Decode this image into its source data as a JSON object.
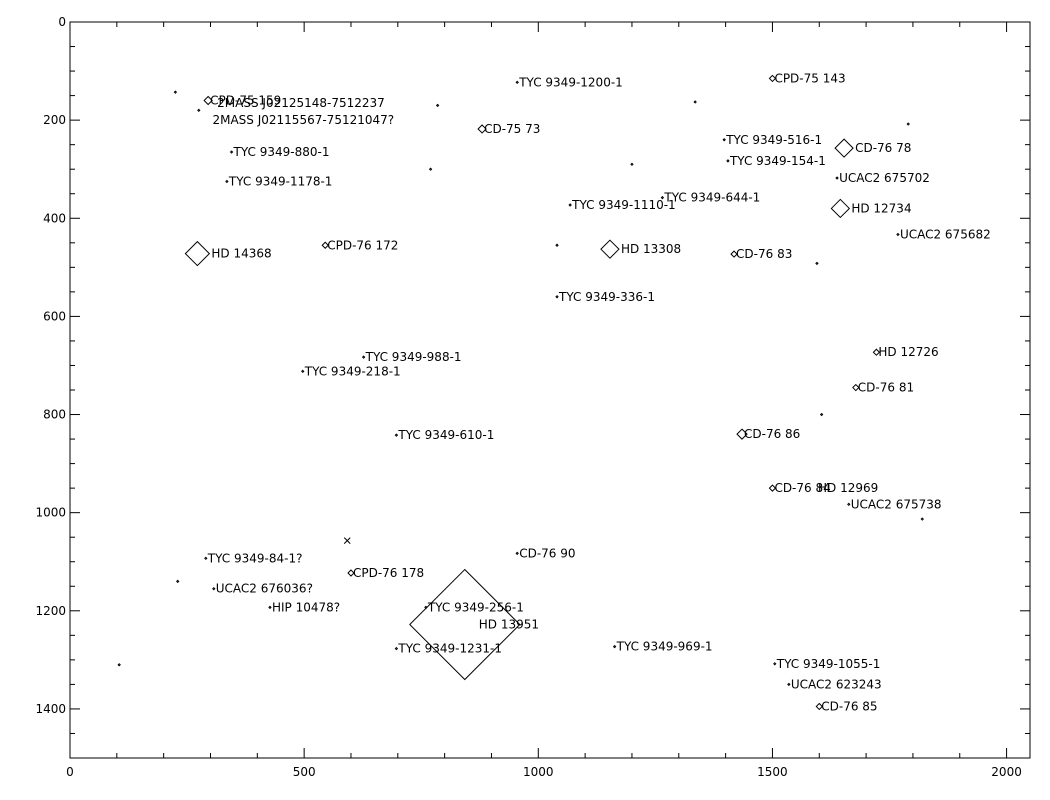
{
  "chart_data": {
    "type": "scatter",
    "title": "",
    "xlabel": "",
    "ylabel": "",
    "xlim": [
      0,
      2050
    ],
    "ylim": [
      1500,
      0
    ],
    "x_ticks": [
      0,
      500,
      1000,
      1500,
      2000
    ],
    "y_ticks": [
      0,
      200,
      400,
      600,
      800,
      1000,
      1200,
      1400
    ],
    "grid": false,
    "legend": "none",
    "stars": [
      {
        "name": "CPD-75 159",
        "x": 295,
        "y": 160,
        "size": 4
      },
      {
        "name": "2MASS J02125148-7512237",
        "x": 310,
        "y": 165,
        "size": 0
      },
      {
        "name": "2MASS J02115567-75121047?",
        "x": 300,
        "y": 200,
        "size": 0
      },
      {
        "name": "TYC 9349-880-1",
        "x": 345,
        "y": 265,
        "size": 1
      },
      {
        "name": "TYC 9349-1178-1",
        "x": 335,
        "y": 325,
        "size": 1
      },
      {
        "name": "HD 14368",
        "x": 272,
        "y": 472,
        "size": 12
      },
      {
        "name": "CPD-76 172",
        "x": 545,
        "y": 455,
        "size": 3
      },
      {
        "name": "TYC 9349-1200-1",
        "x": 955,
        "y": 123,
        "size": 1
      },
      {
        "name": "CD-75 73",
        "x": 880,
        "y": 218,
        "size": 4
      },
      {
        "name": "TYC 9349-988-1",
        "x": 627,
        "y": 683,
        "size": 1
      },
      {
        "name": "TYC 9349-218-1",
        "x": 497,
        "y": 712,
        "size": 1
      },
      {
        "name": "TYC 9349-610-1",
        "x": 697,
        "y": 842,
        "size": 1
      },
      {
        "name": "TYC 9349-1110-1",
        "x": 1068,
        "y": 373,
        "size": 1
      },
      {
        "name": "HD 13308",
        "x": 1153,
        "y": 463,
        "size": 9
      },
      {
        "name": "TYC 9349-336-1",
        "x": 1040,
        "y": 560,
        "size": 1
      },
      {
        "name": "TYC 9349-644-1",
        "x": 1265,
        "y": 358,
        "size": 1
      },
      {
        "name": "CPD-75 143",
        "x": 1500,
        "y": 115,
        "size": 3
      },
      {
        "name": "TYC 9349-516-1",
        "x": 1397,
        "y": 240,
        "size": 1
      },
      {
        "name": "TYC 9349-154-1",
        "x": 1405,
        "y": 283,
        "size": 1
      },
      {
        "name": "CD-76 78",
        "x": 1653,
        "y": 257,
        "size": 9
      },
      {
        "name": "UCAC2 675702",
        "x": 1638,
        "y": 318,
        "size": 1
      },
      {
        "name": "HD 12734",
        "x": 1645,
        "y": 380,
        "size": 9
      },
      {
        "name": "UCAC2 675682",
        "x": 1768,
        "y": 433,
        "size": 1
      },
      {
        "name": "CD-76 83",
        "x": 1418,
        "y": 473,
        "size": 3
      },
      {
        "name": "HD 12726",
        "x": 1722,
        "y": 673,
        "size": 3
      },
      {
        "name": "CD-76 81",
        "x": 1678,
        "y": 745,
        "size": 3
      },
      {
        "name": "CD-76 86",
        "x": 1435,
        "y": 840,
        "size": 5
      },
      {
        "name": "CD-76 84",
        "x": 1500,
        "y": 950,
        "size": 3
      },
      {
        "name": "HD 12969",
        "x": 1593,
        "y": 950,
        "size": 0
      },
      {
        "name": "UCAC2 675738",
        "x": 1663,
        "y": 983,
        "size": 1
      },
      {
        "name": "TYC 9349-84-1?",
        "x": 290,
        "y": 1093,
        "size": 1
      },
      {
        "name": "CPD-76 178",
        "x": 600,
        "y": 1123,
        "size": 3
      },
      {
        "name": "UCAC2 676036?",
        "x": 307,
        "y": 1155,
        "size": 1
      },
      {
        "name": "HIP 10478?",
        "x": 427,
        "y": 1193,
        "size": 1
      },
      {
        "name": "CD-76 90",
        "x": 955,
        "y": 1083,
        "size": 1
      },
      {
        "name": "TYC 9349-256-1",
        "x": 760,
        "y": 1193,
        "size": 1
      },
      {
        "name": "HD 13951",
        "x": 843,
        "y": 1228,
        "size": 55
      },
      {
        "name": "TYC 9349-1231-1",
        "x": 697,
        "y": 1277,
        "size": 1
      },
      {
        "name": "TYC 9349-969-1",
        "x": 1163,
        "y": 1273,
        "size": 1
      },
      {
        "name": "TYC 9349-1055-1",
        "x": 1505,
        "y": 1308,
        "size": 1
      },
      {
        "name": "UCAC2 623243",
        "x": 1535,
        "y": 1350,
        "size": 1
      },
      {
        "name": "CD-76 85",
        "x": 1600,
        "y": 1395,
        "size": 3
      }
    ],
    "unlabeled": [
      {
        "x": 225,
        "y": 143,
        "size": 1
      },
      {
        "x": 275,
        "y": 180,
        "size": 1
      },
      {
        "x": 785,
        "y": 170,
        "size": 1
      },
      {
        "x": 770,
        "y": 300,
        "size": 1
      },
      {
        "x": 1200,
        "y": 290,
        "size": 1
      },
      {
        "x": 1335,
        "y": 163,
        "size": 1
      },
      {
        "x": 1790,
        "y": 208,
        "size": 1
      },
      {
        "x": 1040,
        "y": 455,
        "size": 1
      },
      {
        "x": 1595,
        "y": 492,
        "size": 1
      },
      {
        "x": 1605,
        "y": 800,
        "size": 1
      },
      {
        "x": 1820,
        "y": 1013,
        "size": 1
      },
      {
        "x": 230,
        "y": 1140,
        "size": 1
      },
      {
        "x": 105,
        "y": 1310,
        "size": 1
      }
    ],
    "cross_marker": {
      "x": 592,
      "y": 1057
    }
  }
}
